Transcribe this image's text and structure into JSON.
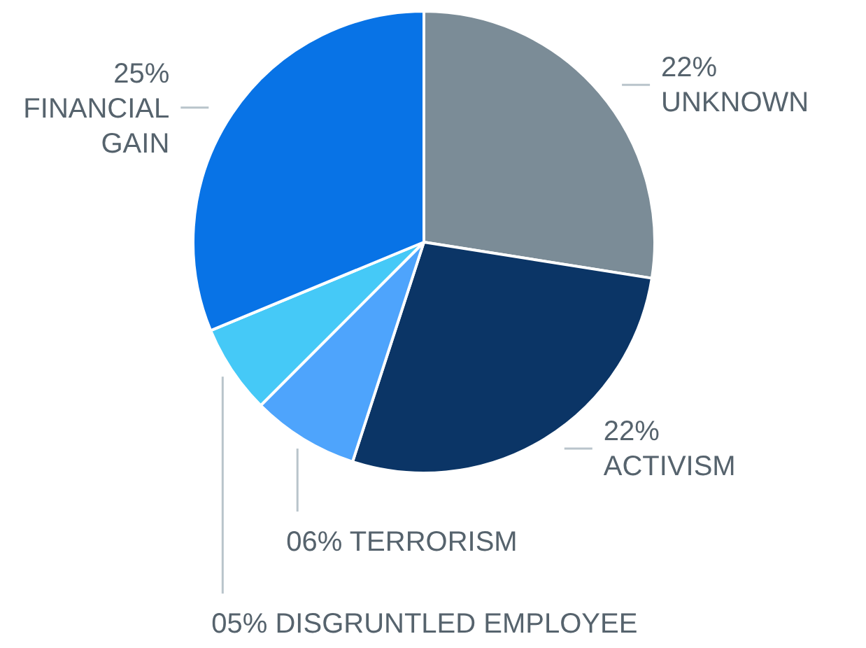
{
  "chart_data": {
    "type": "pie",
    "categories": [
      "UNKNOWN",
      "ACTIVISM",
      "TERRORISM",
      "DISGRUNTLED EMPLOYEE",
      "FINANCIAL GAIN"
    ],
    "values": [
      22,
      22,
      6,
      5,
      25
    ],
    "value_labels": [
      "22%",
      "22%",
      "06%",
      "05%",
      "25%"
    ],
    "colors": [
      "#7b8c97",
      "#0b3566",
      "#4ea4fc",
      "#45c9f7",
      "#0873e6"
    ]
  }
}
